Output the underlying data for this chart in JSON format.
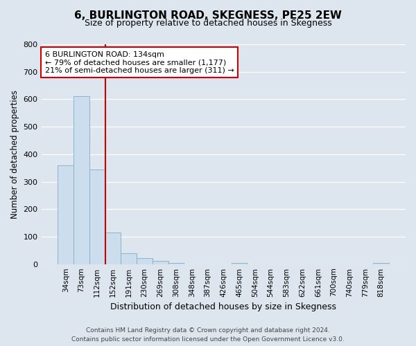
{
  "title": "6, BURLINGTON ROAD, SKEGNESS, PE25 2EW",
  "subtitle": "Size of property relative to detached houses in Skegness",
  "xlabel": "Distribution of detached houses by size in Skegness",
  "ylabel": "Number of detached properties",
  "bar_labels": [
    "34sqm",
    "73sqm",
    "112sqm",
    "152sqm",
    "191sqm",
    "230sqm",
    "269sqm",
    "308sqm",
    "348sqm",
    "387sqm",
    "426sqm",
    "465sqm",
    "504sqm",
    "544sqm",
    "583sqm",
    "622sqm",
    "661sqm",
    "700sqm",
    "740sqm",
    "779sqm",
    "818sqm"
  ],
  "bar_values": [
    360,
    610,
    345,
    115,
    40,
    22,
    13,
    5,
    0,
    0,
    0,
    5,
    0,
    0,
    0,
    0,
    0,
    0,
    0,
    0,
    5
  ],
  "bar_color": "#ccdded",
  "bar_edge_color": "#8ab4cc",
  "vline_color": "#cc0000",
  "annotation_title": "6 BURLINGTON ROAD: 134sqm",
  "annotation_line1": "← 79% of detached houses are smaller (1,177)",
  "annotation_line2": "21% of semi-detached houses are larger (311) →",
  "annotation_box_facecolor": "#ffffff",
  "annotation_box_edgecolor": "#cc0000",
  "ylim": [
    0,
    800
  ],
  "yticks": [
    0,
    100,
    200,
    300,
    400,
    500,
    600,
    700,
    800
  ],
  "footer1": "Contains HM Land Registry data © Crown copyright and database right 2024.",
  "footer2": "Contains public sector information licensed under the Open Government Licence v3.0.",
  "background_color": "#dde6ee",
  "plot_bg_color": "#dde6ee",
  "title_fontsize": 11,
  "subtitle_fontsize": 9,
  "xlabel_fontsize": 9,
  "ylabel_fontsize": 8.5,
  "tick_fontsize": 8,
  "xtick_fontsize": 7.5,
  "footer_fontsize": 6.5
}
